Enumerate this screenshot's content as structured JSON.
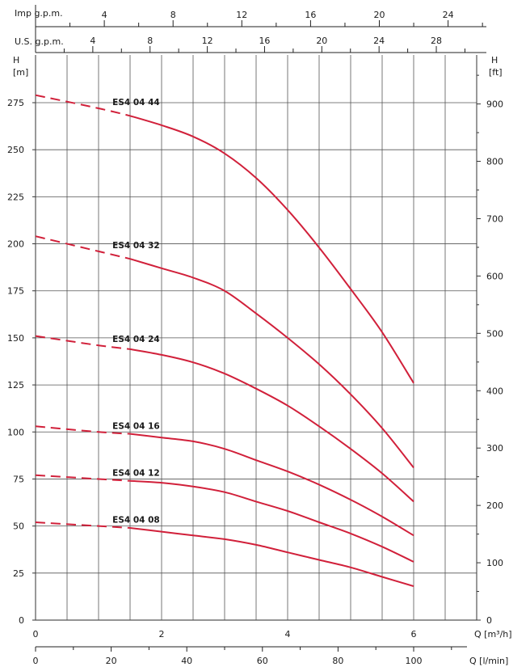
{
  "chart_data": {
    "type": "line",
    "x_unit_label": "Q [m³/h]",
    "x2_unit_label": "Q [l/min]",
    "y_left_label_line1": "H",
    "y_left_label_line2": "[m]",
    "y_right_label_line1": "H",
    "y_right_label_line2": "[ft]",
    "imp_label": "Imp g.p.m.",
    "us_label": "U.S. g.p.m.",
    "xlim": [
      0,
      7.2
    ],
    "ylim": [
      0,
      290
    ],
    "x_ticks": [
      "0",
      "2",
      "4",
      "6"
    ],
    "lmin_ticks": [
      "0",
      "20",
      "40",
      "60",
      "80",
      "100"
    ],
    "y_ticks": [
      "0",
      "25",
      "50",
      "75",
      "100",
      "125",
      "150",
      "175",
      "200",
      "225",
      "250",
      "275"
    ],
    "ft_ticks": [
      "0",
      "100",
      "200",
      "300",
      "400",
      "500",
      "600",
      "700",
      "800",
      "900"
    ],
    "imp_ticks": [
      "4",
      "8",
      "12",
      "16",
      "20",
      "24"
    ],
    "us_ticks": [
      "4",
      "8",
      "12",
      "16",
      "20",
      "24",
      "28"
    ],
    "series": [
      {
        "name": "ES4 04 44",
        "x": [
          0,
          1,
          1.5,
          2,
          2.5,
          3,
          3.5,
          4,
          4.5,
          5,
          5.5,
          6
        ],
        "y": [
          279,
          272,
          268,
          263,
          257,
          248,
          235,
          218,
          198,
          176,
          153,
          126
        ]
      },
      {
        "name": "ES4 04 32",
        "x": [
          0,
          1,
          1.5,
          2,
          2.5,
          3,
          3.5,
          4,
          4.5,
          5,
          5.5,
          6
        ],
        "y": [
          204,
          196,
          192,
          187,
          182,
          175,
          163,
          150,
          136,
          120,
          102,
          81
        ]
      },
      {
        "name": "ES4 04 24",
        "x": [
          0,
          1,
          1.5,
          2,
          2.5,
          3,
          3.5,
          4,
          4.5,
          5,
          5.5,
          6
        ],
        "y": [
          151,
          146,
          144,
          141,
          137,
          131,
          123,
          114,
          103,
          91,
          78,
          63
        ]
      },
      {
        "name": "ES4 04 16",
        "x": [
          0,
          1,
          1.5,
          2,
          2.5,
          3,
          3.5,
          4,
          4.5,
          5,
          5.5,
          6
        ],
        "y": [
          103,
          100,
          99,
          97,
          95,
          91,
          85,
          79,
          72,
          64,
          55,
          45
        ]
      },
      {
        "name": "ES4 04 12",
        "x": [
          0,
          1,
          1.5,
          2,
          2.5,
          3,
          3.5,
          4,
          4.5,
          5,
          5.5,
          6
        ],
        "y": [
          77,
          75,
          74,
          73,
          71,
          68,
          63,
          58,
          52,
          46,
          39,
          31
        ]
      },
      {
        "name": "ES4 04 08",
        "x": [
          0,
          1,
          1.5,
          2,
          2.5,
          3,
          3.5,
          4,
          4.5,
          5,
          5.5,
          6
        ],
        "y": [
          52,
          50,
          49,
          47,
          45,
          43,
          40,
          36,
          32,
          28,
          23,
          18
        ]
      }
    ],
    "dashed_until_x": 1.5,
    "line_color": "#d1203a",
    "grid": true
  }
}
